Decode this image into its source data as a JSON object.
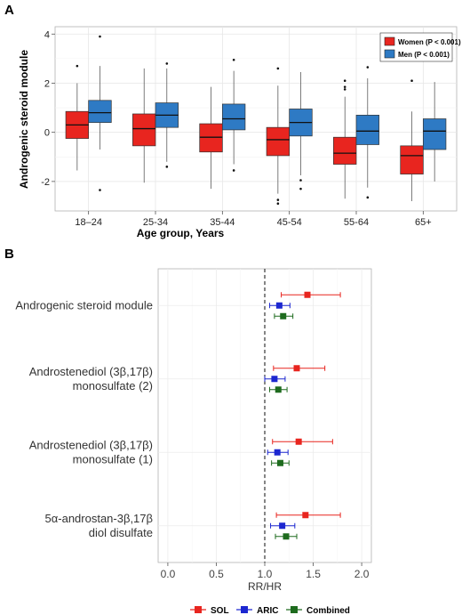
{
  "chart_data": [
    {
      "type": "box",
      "panel_label": "A",
      "xlabel": "Age group, Years",
      "ylabel": "Androgenic steroid module",
      "ylim": [
        -3.2,
        4.3
      ],
      "yticks": [
        -2,
        0,
        2,
        4
      ],
      "yticklabels": [
        "-2",
        "0",
        "2",
        "4"
      ],
      "categories": [
        "18–24",
        "25-34",
        "35-44",
        "45-54",
        "55-64",
        "65+"
      ],
      "grid": true,
      "legend_position": "top-right",
      "series": [
        {
          "name": "Women (P < 0.001)",
          "color": "#e8251f",
          "boxes": [
            {
              "q1": -0.25,
              "median": 0.3,
              "q3": 0.85,
              "whisker_low": -1.55,
              "whisker_high": 2.0,
              "outliers": [
                2.7
              ]
            },
            {
              "q1": -0.55,
              "median": 0.15,
              "q3": 0.75,
              "whisker_low": -2.05,
              "whisker_high": 2.6,
              "outliers": []
            },
            {
              "q1": -0.8,
              "median": -0.2,
              "q3": 0.35,
              "whisker_low": -2.3,
              "whisker_high": 1.85,
              "outliers": []
            },
            {
              "q1": -0.95,
              "median": -0.3,
              "q3": 0.2,
              "whisker_low": -2.5,
              "whisker_high": 1.9,
              "outliers": [
                2.6,
                -2.75,
                -2.9
              ]
            },
            {
              "q1": -1.3,
              "median": -0.85,
              "q3": -0.2,
              "whisker_low": -2.7,
              "whisker_high": 1.45,
              "outliers": [
                2.1,
                1.85,
                1.75
              ]
            },
            {
              "q1": -1.7,
              "median": -0.95,
              "q3": -0.55,
              "whisker_low": -2.8,
              "whisker_high": 0.85,
              "outliers": [
                2.1
              ]
            }
          ]
        },
        {
          "name": "Men (P < 0.001)",
          "color": "#2e7ac4",
          "boxes": [
            {
              "q1": 0.4,
              "median": 0.8,
              "q3": 1.3,
              "whisker_low": -0.7,
              "whisker_high": 2.7,
              "outliers": [
                3.9,
                -2.35
              ]
            },
            {
              "q1": 0.2,
              "median": 0.7,
              "q3": 1.2,
              "whisker_low": -1.2,
              "whisker_high": 2.6,
              "outliers": [
                2.8,
                -1.4
              ]
            },
            {
              "q1": 0.1,
              "median": 0.55,
              "q3": 1.15,
              "whisker_low": -1.3,
              "whisker_high": 2.5,
              "outliers": [
                2.95,
                -1.55
              ]
            },
            {
              "q1": -0.15,
              "median": 0.4,
              "q3": 0.95,
              "whisker_low": -1.75,
              "whisker_high": 2.45,
              "outliers": [
                -1.95,
                -2.3
              ]
            },
            {
              "q1": -0.5,
              "median": 0.05,
              "q3": 0.7,
              "whisker_low": -2.25,
              "whisker_high": 2.2,
              "outliers": [
                2.65,
                -2.65
              ]
            },
            {
              "q1": -0.7,
              "median": 0.05,
              "q3": 0.55,
              "whisker_low": -2.0,
              "whisker_high": 2.05,
              "outliers": []
            }
          ]
        }
      ]
    },
    {
      "type": "forest",
      "panel_label": "B",
      "xlabel": "RR/HR",
      "xlim": [
        -0.1,
        2.1
      ],
      "xticks": [
        0.0,
        0.5,
        1.0,
        1.5,
        2.0
      ],
      "xticklabels": [
        "0.0",
        "0.5",
        "1.0",
        "1.5",
        "2.0"
      ],
      "reference_line": 1.0,
      "grid": true,
      "legend_position": "bottom",
      "rows": [
        {
          "label_lines": [
            "Androgenic steroid module"
          ]
        },
        {
          "label_lines": [
            "Androstenediol (3β,17β)",
            "monosulfate (2)"
          ]
        },
        {
          "label_lines": [
            "Androstenediol (3β,17β)",
            "monosulfate (1)"
          ]
        },
        {
          "label_lines": [
            "5α-androstan-3β,17β",
            "diol disulfate"
          ]
        }
      ],
      "series": [
        {
          "name": "SOL",
          "color": "#e8251f",
          "estimates": [
            {
              "est": 1.44,
              "lo": 1.17,
              "hi": 1.78
            },
            {
              "est": 1.33,
              "lo": 1.09,
              "hi": 1.62
            },
            {
              "est": 1.35,
              "lo": 1.08,
              "hi": 1.7
            },
            {
              "est": 1.42,
              "lo": 1.12,
              "hi": 1.78
            }
          ]
        },
        {
          "name": "ARIC",
          "color": "#1c27d0",
          "estimates": [
            {
              "est": 1.15,
              "lo": 1.05,
              "hi": 1.26
            },
            {
              "est": 1.1,
              "lo": 1.0,
              "hi": 1.21
            },
            {
              "est": 1.13,
              "lo": 1.03,
              "hi": 1.24
            },
            {
              "est": 1.18,
              "lo": 1.06,
              "hi": 1.31
            }
          ]
        },
        {
          "name": "Combined",
          "color": "#1e6b1e",
          "estimates": [
            {
              "est": 1.19,
              "lo": 1.1,
              "hi": 1.29
            },
            {
              "est": 1.14,
              "lo": 1.05,
              "hi": 1.23
            },
            {
              "est": 1.16,
              "lo": 1.07,
              "hi": 1.25
            },
            {
              "est": 1.22,
              "lo": 1.11,
              "hi": 1.33
            }
          ]
        }
      ]
    }
  ]
}
